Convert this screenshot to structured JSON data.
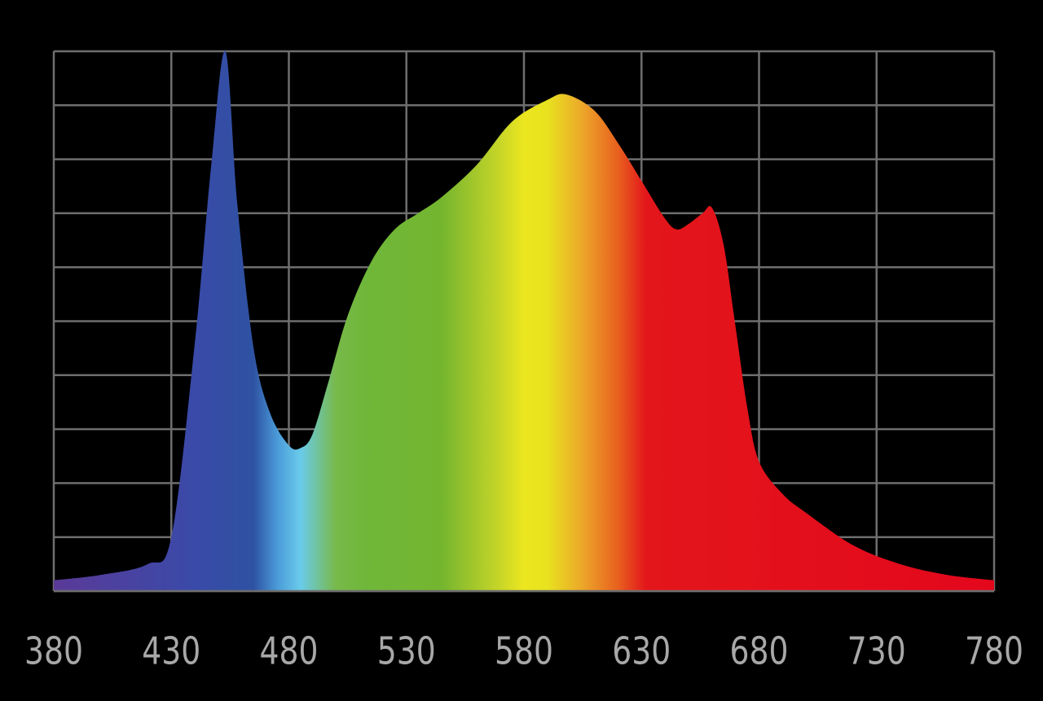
{
  "chart_data": {
    "type": "area",
    "x": [
      380,
      400,
      420,
      430,
      440,
      447,
      453,
      458,
      465,
      472,
      480,
      485,
      490,
      497,
      505,
      515,
      525,
      535,
      545,
      560,
      575,
      590,
      598,
      610,
      620,
      630,
      640,
      645,
      650,
      656,
      660,
      665,
      670,
      675,
      680,
      690,
      700,
      720,
      740,
      760,
      780
    ],
    "values": [
      2,
      3,
      5,
      10,
      46,
      79,
      100,
      72,
      45,
      33,
      27,
      26.5,
      29,
      39,
      51,
      61,
      67,
      70,
      73,
      79,
      87,
      91,
      92,
      89,
      83,
      76,
      69,
      67,
      68,
      70,
      71,
      64,
      49,
      34,
      24,
      18,
      14.5,
      8.5,
      5,
      3,
      2
    ],
    "xlim": [
      380,
      780
    ],
    "xticks": [
      380,
      430,
      480,
      530,
      580,
      630,
      680,
      730,
      780
    ],
    "ylim": [
      0,
      100
    ],
    "yticks": [
      0,
      10,
      20,
      30,
      40,
      50,
      60,
      70,
      80,
      90,
      100
    ],
    "grid": true,
    "gradient": {
      "x": [
        380,
        440,
        465,
        475,
        485,
        500,
        512,
        545,
        570,
        580,
        590,
        605,
        620,
        632,
        780
      ],
      "colors": [
        "#5a3a98",
        "#3a4aa8",
        "#2e52a2",
        "#4a9ad8",
        "#6acbea",
        "#78b94a",
        "#6fb73a",
        "#74b52f",
        "#c8d628",
        "#ece61f",
        "#e8e21f",
        "#eca62a",
        "#e8601e",
        "#e3161b",
        "#e3071c"
      ]
    }
  }
}
